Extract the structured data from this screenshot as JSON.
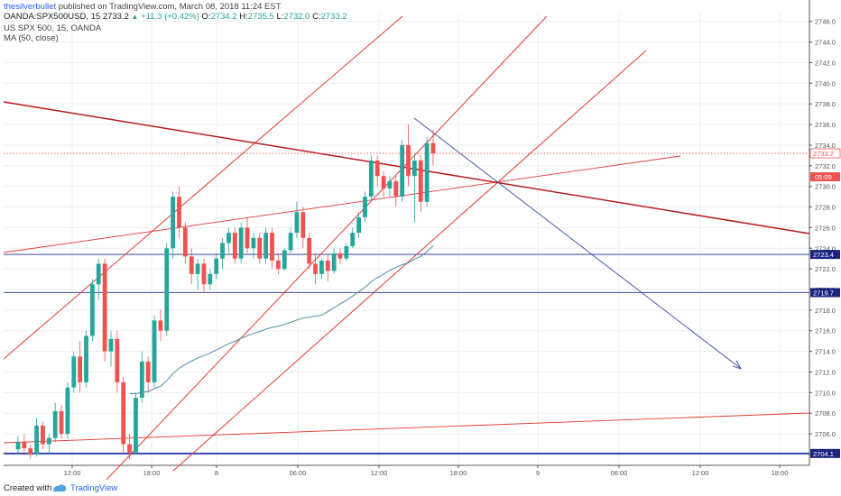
{
  "header": {
    "author": "thesilverbullet",
    "published_text": "published on TradingView.com, March 08, 2018 11:24 EST",
    "symbol": "OANDA:SPX500USD, 15",
    "last": "2733.2",
    "change": "+11.3 (+0.42%)",
    "o_label": "O:",
    "o_val": "2734.2",
    "h_label": "H:",
    "h_val": "2735.5",
    "l_label": "L:",
    "l_val": "2732.0",
    "c_label": "C:",
    "c_val": "2733.2",
    "instrument": "US SPX 500, 15, OANDA",
    "indicator": "MA (50, close)"
  },
  "footer": {
    "created_with": "Created with",
    "brand": "TradingView"
  },
  "colors": {
    "up": "#26a69a",
    "down": "#ef5350",
    "channel": "#e53935",
    "trend_dark": "#b71c1c",
    "blue": "#3949ab",
    "ma": "#4f8fa8",
    "price_label": "#ef5350",
    "level_label": "#1a237e"
  },
  "chart_data": {
    "type": "candlestick",
    "ylim": [
      2703.0,
      2748.0
    ],
    "y_ticks": [
      "2704.0",
      "2706.0",
      "2708.0",
      "2710.0",
      "2712.0",
      "2714.0",
      "2716.0",
      "2718.0",
      "2720.0",
      "2722.0",
      "2724.0",
      "2726.0",
      "2728.0",
      "2730.0",
      "2732.0",
      "2734.0",
      "2736.0",
      "2738.0",
      "2740.0",
      "2742.0",
      "2744.0",
      "2746.0"
    ],
    "x_ticks": [
      "12:00",
      "18:00",
      "8",
      "06:00",
      "12:00",
      "18:00",
      "9",
      "06:00",
      "12:00",
      "18:00"
    ],
    "price_labels": [
      {
        "text": "2733.2",
        "value": 2733.2,
        "style": "price"
      },
      {
        "text": "05:09",
        "value": 2731.8,
        "style": "countdown"
      }
    ],
    "horizontal_levels": [
      {
        "text": "2723.4",
        "value": 2723.4
      },
      {
        "text": "2719.7",
        "value": 2719.7
      },
      {
        "text": "2704.1",
        "value": 2704.1
      }
    ],
    "candles": [
      [
        2704.5,
        2705.8,
        2704.0,
        2705.2
      ],
      [
        2705.2,
        2706.0,
        2704.2,
        2704.6
      ],
      [
        2704.6,
        2705.0,
        2703.6,
        2704.0
      ],
      [
        2704.0,
        2707.5,
        2703.8,
        2706.8
      ],
      [
        2706.8,
        2707.2,
        2704.5,
        2705.0
      ],
      [
        2705.0,
        2706.0,
        2704.0,
        2705.6
      ],
      [
        2705.6,
        2709.0,
        2705.2,
        2708.2
      ],
      [
        2708.2,
        2708.8,
        2705.5,
        2706.0
      ],
      [
        2706.0,
        2711.0,
        2705.5,
        2710.5
      ],
      [
        2710.5,
        2714.0,
        2710.0,
        2713.5
      ],
      [
        2713.5,
        2715.0,
        2710.0,
        2711.0
      ],
      [
        2711.0,
        2716.0,
        2710.5,
        2715.5
      ],
      [
        2715.5,
        2721.0,
        2715.0,
        2720.5
      ],
      [
        2720.5,
        2723.0,
        2719.0,
        2722.5
      ],
      [
        2722.5,
        2723.0,
        2713.0,
        2714.0
      ],
      [
        2714.0,
        2716.0,
        2712.5,
        2715.2
      ],
      [
        2715.2,
        2716.0,
        2710.0,
        2711.0
      ],
      [
        2711.0,
        2711.5,
        2704.0,
        2705.0
      ],
      [
        2705.0,
        2706.0,
        2703.5,
        2704.2
      ],
      [
        2704.2,
        2710.0,
        2704.0,
        2709.5
      ],
      [
        2709.5,
        2714.0,
        2709.0,
        2713.0
      ],
      [
        2713.0,
        2713.5,
        2710.0,
        2711.0
      ],
      [
        2711.0,
        2717.5,
        2710.5,
        2717.0
      ],
      [
        2717.0,
        2718.0,
        2715.0,
        2716.0
      ],
      [
        2716.0,
        2724.5,
        2715.5,
        2724.0
      ],
      [
        2724.0,
        2729.5,
        2723.0,
        2729.0
      ],
      [
        2729.0,
        2730.0,
        2725.0,
        2726.0
      ],
      [
        2726.0,
        2726.5,
        2722.5,
        2723.2
      ],
      [
        2723.2,
        2724.0,
        2720.5,
        2721.5
      ],
      [
        2721.5,
        2723.0,
        2720.0,
        2722.5
      ],
      [
        2722.5,
        2723.0,
        2719.8,
        2720.5
      ],
      [
        2720.5,
        2722.0,
        2720.0,
        2721.5
      ],
      [
        2721.5,
        2723.5,
        2721.0,
        2723.0
      ],
      [
        2723.0,
        2725.0,
        2722.0,
        2724.5
      ],
      [
        2724.5,
        2726.0,
        2723.5,
        2725.5
      ],
      [
        2725.5,
        2726.0,
        2722.5,
        2723.0
      ],
      [
        2723.0,
        2726.5,
        2722.5,
        2726.0
      ],
      [
        2726.0,
        2727.0,
        2723.5,
        2724.0
      ],
      [
        2724.0,
        2725.5,
        2723.0,
        2725.0
      ],
      [
        2725.0,
        2725.5,
        2722.5,
        2723.0
      ],
      [
        2723.0,
        2726.0,
        2722.5,
        2725.5
      ],
      [
        2725.5,
        2726.0,
        2722.0,
        2722.8
      ],
      [
        2722.8,
        2723.5,
        2721.5,
        2722.0
      ],
      [
        2722.0,
        2724.0,
        2721.8,
        2723.8
      ],
      [
        2723.8,
        2726.0,
        2723.5,
        2725.5
      ],
      [
        2725.5,
        2728.5,
        2725.0,
        2727.5
      ],
      [
        2727.5,
        2728.0,
        2724.0,
        2725.0
      ],
      [
        2725.0,
        2725.5,
        2722.0,
        2722.5
      ],
      [
        2722.5,
        2723.5,
        2720.5,
        2721.5
      ],
      [
        2721.5,
        2723.0,
        2721.0,
        2722.8
      ],
      [
        2722.8,
        2723.5,
        2720.8,
        2721.8
      ],
      [
        2721.8,
        2724.0,
        2721.5,
        2723.5
      ],
      [
        2723.5,
        2724.0,
        2722.5,
        2723.0
      ],
      [
        2723.0,
        2724.5,
        2722.8,
        2724.2
      ],
      [
        2724.2,
        2726.0,
        2724.0,
        2725.5
      ],
      [
        2725.5,
        2727.5,
        2725.0,
        2727.0
      ],
      [
        2727.0,
        2729.5,
        2726.5,
        2729.0
      ],
      [
        2729.0,
        2733.0,
        2728.5,
        2732.5
      ],
      [
        2732.5,
        2733.0,
        2730.0,
        2731.0
      ],
      [
        2731.0,
        2731.5,
        2729.0,
        2729.8
      ],
      [
        2729.8,
        2731.0,
        2729.0,
        2730.5
      ],
      [
        2730.5,
        2731.0,
        2728.0,
        2729.0
      ],
      [
        2729.0,
        2734.5,
        2728.5,
        2734.0
      ],
      [
        2734.0,
        2736.0,
        2730.0,
        2731.0
      ],
      [
        2731.0,
        2733.0,
        2726.5,
        2732.5
      ],
      [
        2732.5,
        2733.0,
        2727.5,
        2728.5
      ],
      [
        2728.5,
        2734.8,
        2728.0,
        2734.2
      ],
      [
        2734.2,
        2735.5,
        2732.0,
        2733.2
      ]
    ],
    "ma_period": 50
  }
}
